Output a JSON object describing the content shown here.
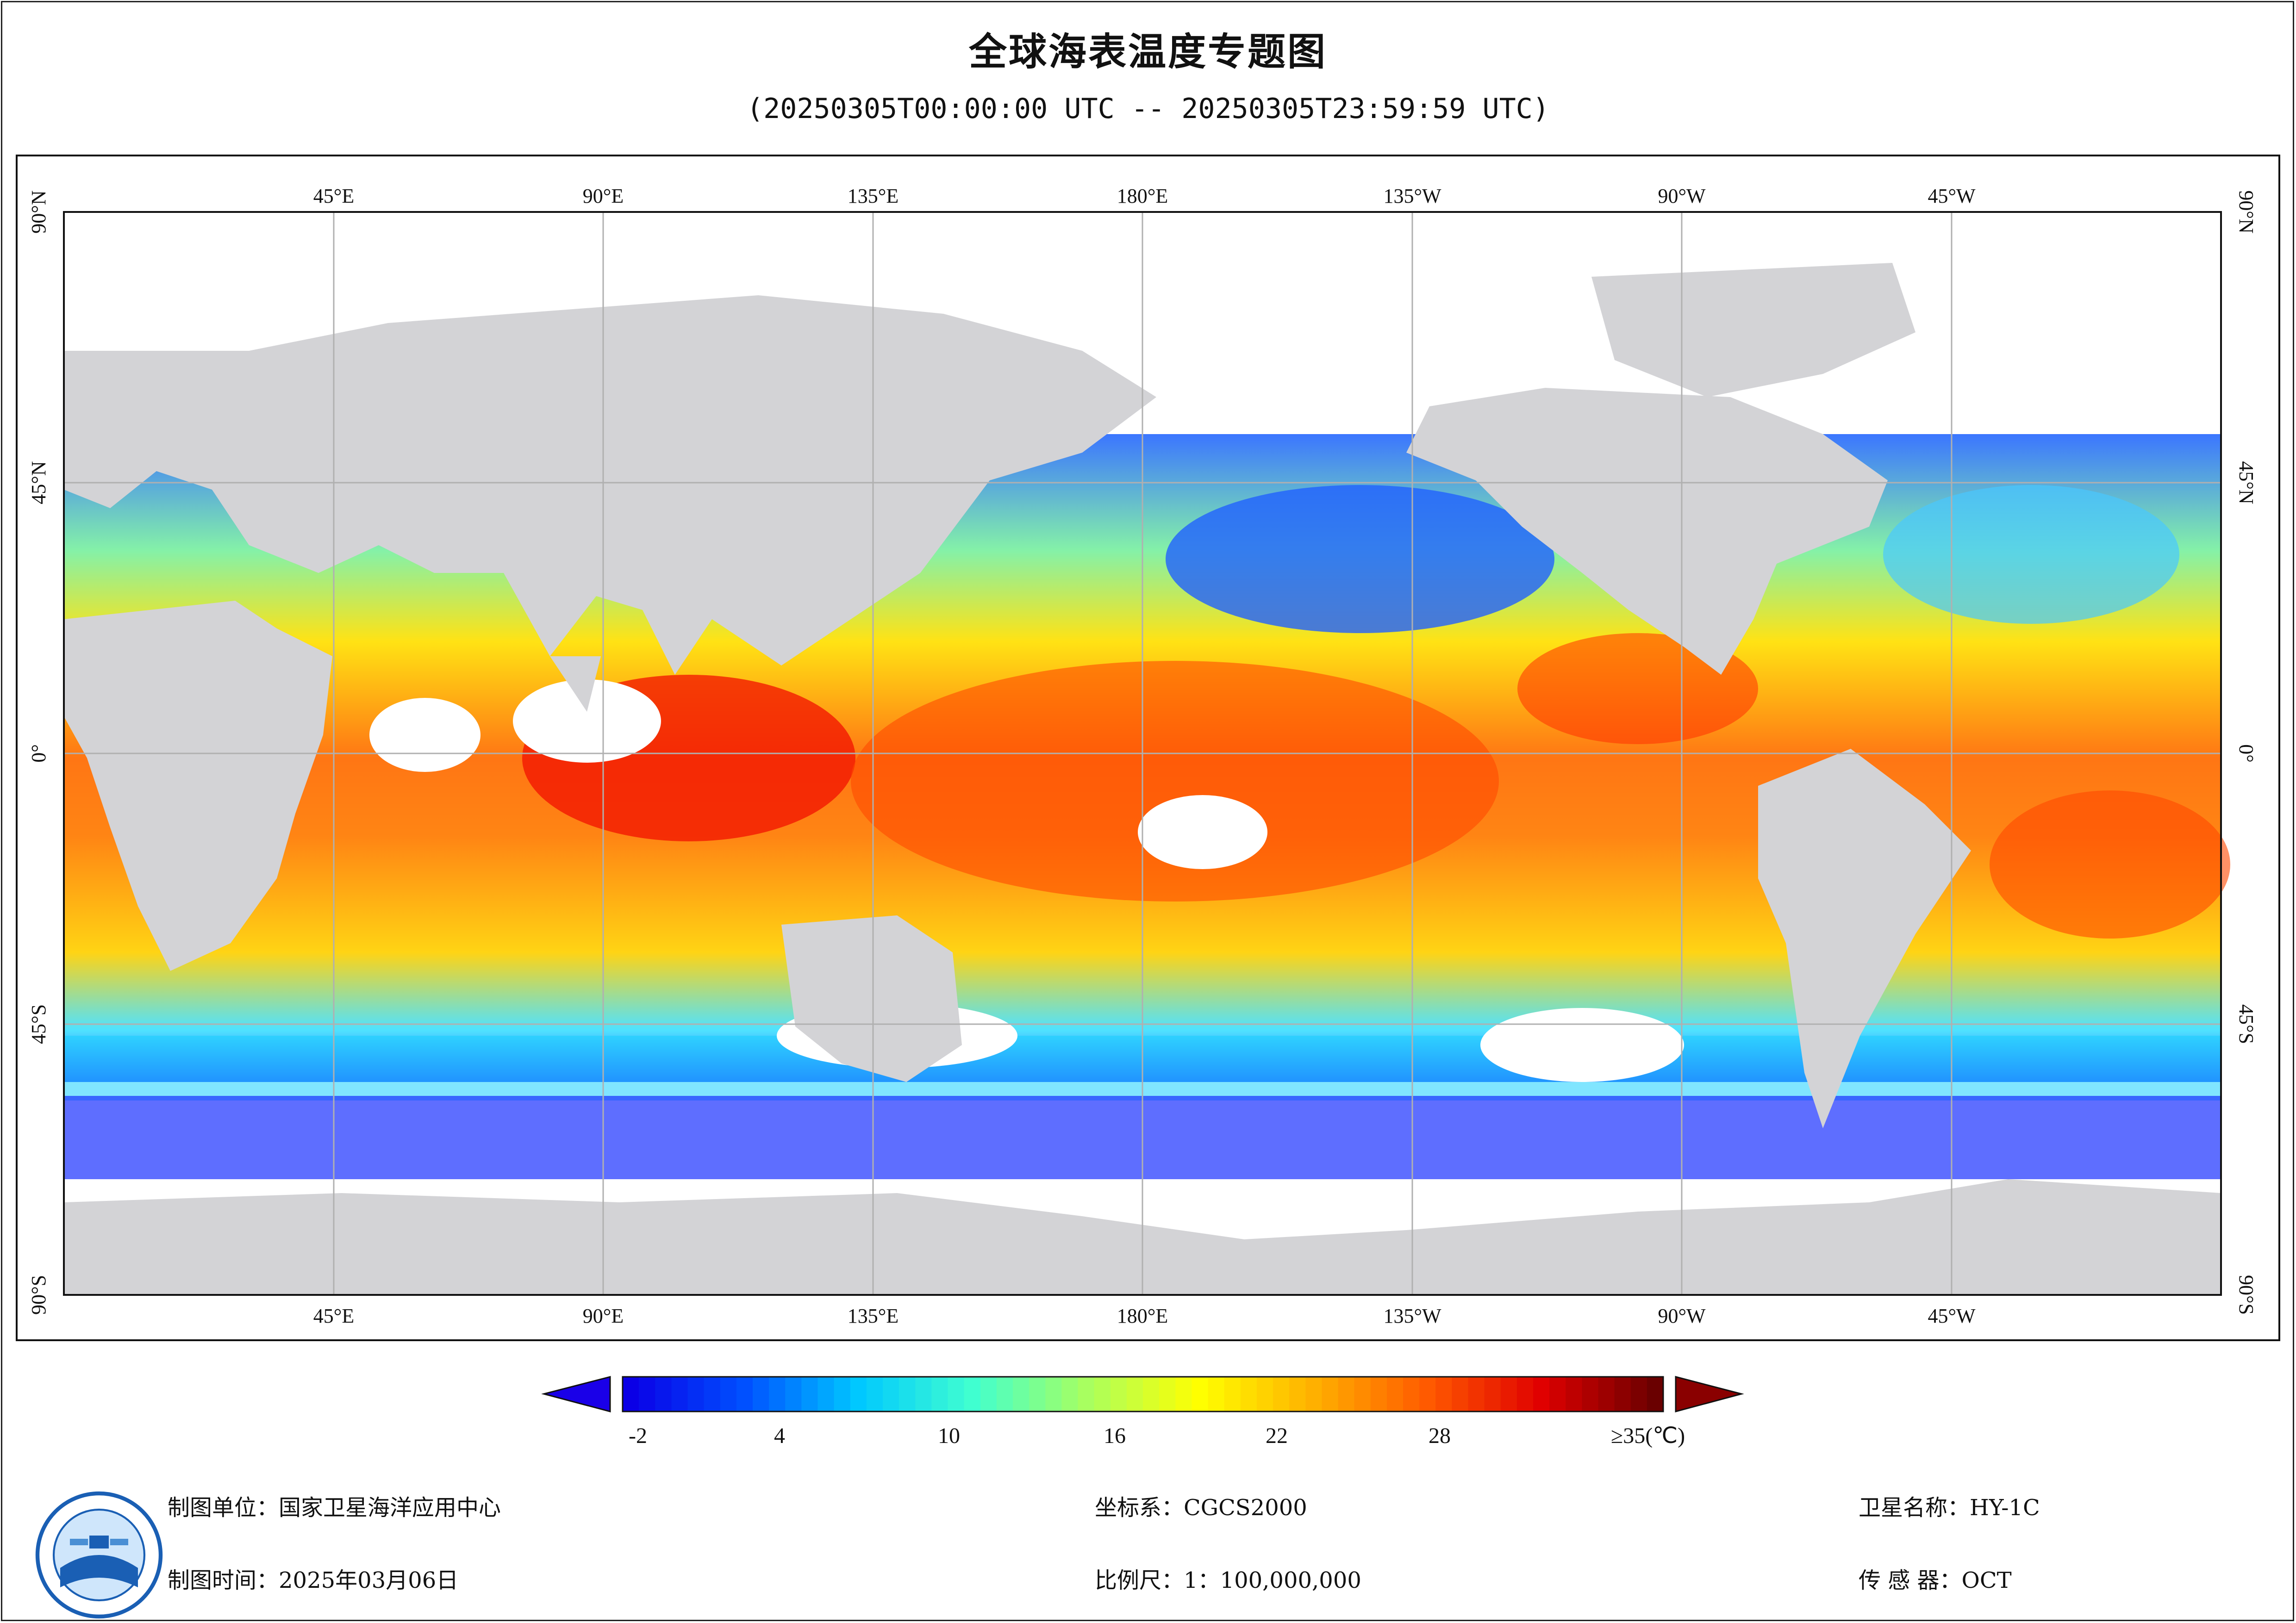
{
  "title": "全球海表温度专题图",
  "subtitle": "(20250305T00:00:00 UTC -- 20250305T23:59:59 UTC)",
  "map": {
    "lon_ticks": [
      "45°E",
      "90°E",
      "135°E",
      "180°E",
      "135°W",
      "90°W",
      "45°W"
    ],
    "lat_ticks": [
      "90°N",
      "45°N",
      "0°",
      "45°S",
      "90°S"
    ],
    "colors": {
      "land": "#d3d3d6",
      "cloud": "#ffffff",
      "grid": "#b0b0b0"
    }
  },
  "colorbar": {
    "tick_labels": [
      "-2",
      "4",
      "10",
      "16",
      "22",
      "28",
      "≥35(℃)"
    ],
    "min": -2,
    "max": 35,
    "stops": [
      "#0a00e6",
      "#0050ff",
      "#00c8ff",
      "#40ffd0",
      "#a8ff60",
      "#ffff00",
      "#ffb000",
      "#ff5a00",
      "#e00000",
      "#6a0000"
    ]
  },
  "footer": {
    "org": "制图单位：国家卫星海洋应用中心",
    "time": "制图时间：2025年03月06日",
    "crs": "坐标系：CGCS2000",
    "scale": "比例尺：1：100,000,000",
    "satellite": "卫星名称：HY-1C",
    "sensor": "传  感  器：OCT",
    "logo_icon": "nsoas-logo-icon"
  }
}
